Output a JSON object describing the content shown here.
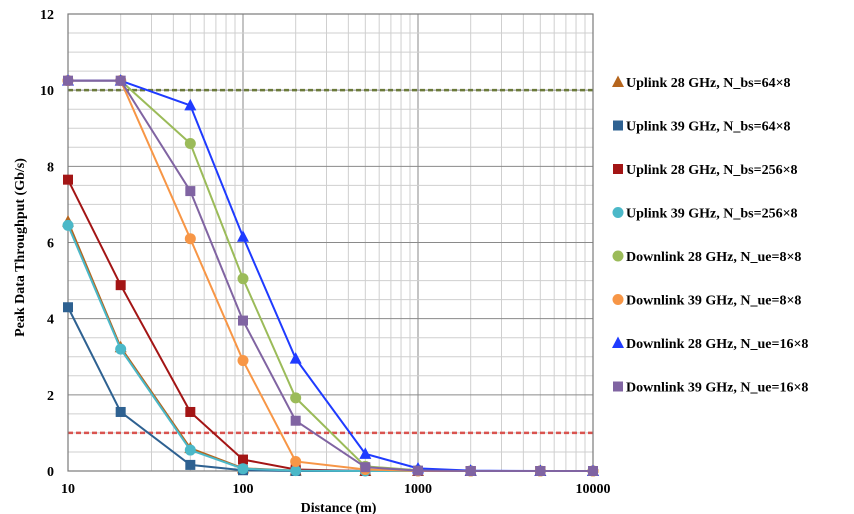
{
  "chart_data": {
    "type": "line",
    "title": "",
    "xlabel": "Distance (m)",
    "ylabel": "Peak Data Throughput (Gb/s)",
    "xscale": "log",
    "xlim": [
      10,
      10000
    ],
    "ylim": [
      0,
      12
    ],
    "grid": true,
    "legend_position": "right",
    "x_ticks": [
      10,
      100,
      1000,
      10000
    ],
    "x_tick_labels": [
      "10",
      "100",
      "1000",
      "10000"
    ],
    "y_ticks": [
      0,
      2,
      4,
      6,
      8,
      10,
      12
    ],
    "y_tick_labels": [
      "0",
      "2",
      "4",
      "6",
      "8",
      "10",
      "12"
    ],
    "x": [
      10,
      20,
      50,
      100,
      200,
      500,
      1000,
      2000,
      5000,
      10000
    ],
    "reference_lines": [
      {
        "y": 10,
        "color": "#6b7a3a",
        "style": "dashed"
      },
      {
        "y": 1,
        "color": "#d9534f",
        "style": "dashed"
      }
    ],
    "series": [
      {
        "name": "Uplink 28 GHz, N_bs=64×8",
        "color": "#b5651d",
        "marker": "triangle",
        "values": [
          6.55,
          3.25,
          0.6,
          0.07,
          0.01,
          0,
          0,
          0,
          0,
          0
        ]
      },
      {
        "name": "Uplink 39 GHz, N_bs=64×8",
        "color": "#2e6191",
        "marker": "square",
        "values": [
          4.3,
          1.55,
          0.16,
          0.02,
          0,
          0,
          0,
          0,
          0,
          0
        ]
      },
      {
        "name": "Uplink 28 GHz, N_bs=256×8",
        "color": "#a31515",
        "marker": "square",
        "values": [
          7.65,
          4.88,
          1.55,
          0.3,
          0.04,
          0,
          0,
          0,
          0,
          0
        ]
      },
      {
        "name": "Uplink 39 GHz, N_bs=256×8",
        "color": "#4bb8c8",
        "marker": "circle",
        "values": [
          6.45,
          3.2,
          0.55,
          0.06,
          0.01,
          0,
          0,
          0,
          0,
          0
        ]
      },
      {
        "name": "Downlink 28 GHz, N_ue=8×8",
        "color": "#9bbb59",
        "marker": "circle",
        "values": [
          10.25,
          10.25,
          8.6,
          5.05,
          1.92,
          0.12,
          0.02,
          0,
          0,
          0
        ]
      },
      {
        "name": "Downlink 39 GHz, N_ue=8×8",
        "color": "#f79646",
        "marker": "circle",
        "values": [
          10.25,
          10.25,
          6.1,
          2.9,
          0.25,
          0.04,
          0,
          0,
          0,
          0
        ]
      },
      {
        "name": "Downlink 28 GHz, N_ue=16×8",
        "color": "#1f3bff",
        "marker": "triangle",
        "values": [
          10.25,
          10.25,
          9.6,
          6.15,
          2.95,
          0.45,
          0.07,
          0.01,
          0,
          0
        ]
      },
      {
        "name": "Downlink 39 GHz, N_ue=16×8",
        "color": "#8064a2",
        "marker": "square",
        "values": [
          10.25,
          10.25,
          7.35,
          3.95,
          1.32,
          0.1,
          0.01,
          0,
          0,
          0
        ]
      }
    ]
  }
}
